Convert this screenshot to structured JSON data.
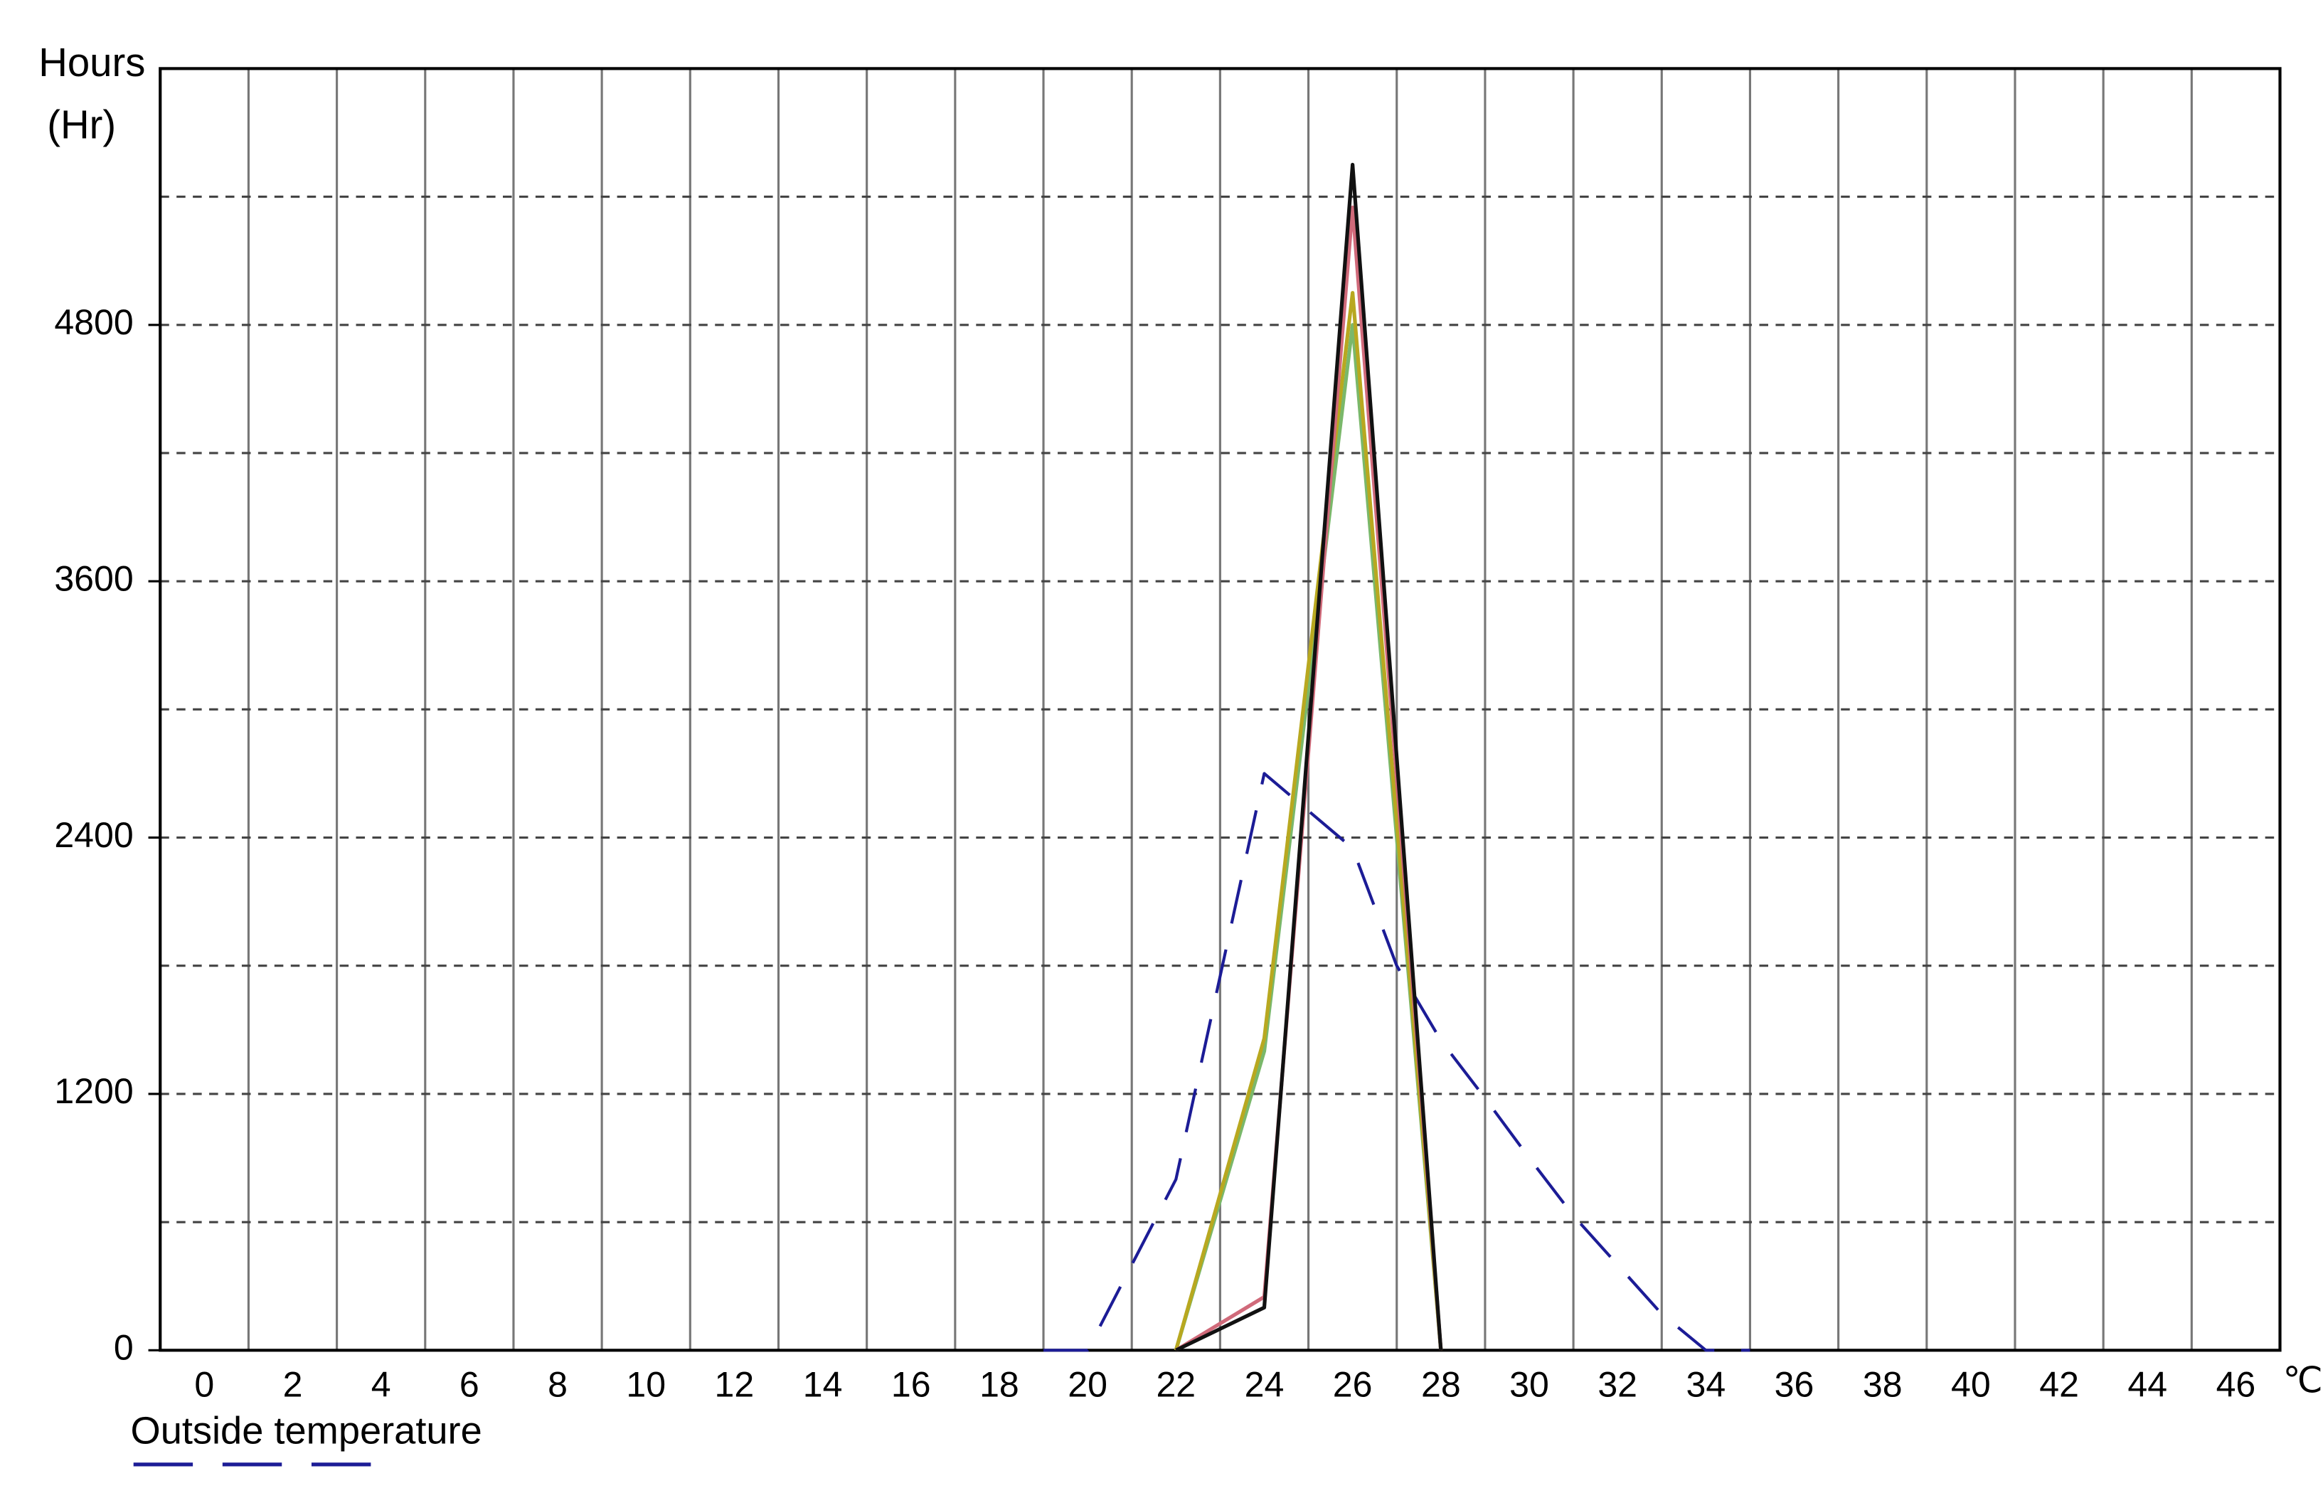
{
  "chart_data": {
    "type": "line",
    "ylabel": "Hours",
    "ylabel_unit": "(Hr)",
    "xlabel": "℃",
    "xlim": [
      -1,
      47
    ],
    "ylim": [
      0,
      6000
    ],
    "xticks": [
      0,
      2,
      4,
      6,
      8,
      10,
      12,
      14,
      16,
      18,
      20,
      22,
      24,
      26,
      28,
      30,
      32,
      34,
      36,
      38,
      40,
      42,
      44,
      46
    ],
    "xgrid": [
      1,
      3,
      5,
      7,
      9,
      11,
      13,
      15,
      17,
      19,
      21,
      23,
      25,
      27,
      29,
      31,
      33,
      35,
      37,
      39,
      41,
      43,
      45
    ],
    "yticks": [
      0,
      1200,
      2400,
      3600,
      4800
    ],
    "ygrid": [
      600,
      1200,
      1800,
      2400,
      3000,
      3600,
      4200,
      4800,
      5400
    ],
    "series": [
      {
        "name": "Outside temperature",
        "color": "#1c1c96",
        "dashed": true,
        "x": [
          19,
          20,
          22,
          24,
          26,
          27,
          28,
          29,
          30,
          31,
          32,
          33,
          34,
          35
        ],
        "values": [
          0,
          0,
          800,
          2700,
          2350,
          1800,
          1450,
          1180,
          900,
          630,
          400,
          170,
          0,
          0
        ]
      },
      {
        "color": "#7ab86a",
        "dashed": false,
        "x": [
          22,
          24,
          26,
          28
        ],
        "values": [
          0,
          1400,
          4800,
          0
        ]
      },
      {
        "color": "#b8a820",
        "dashed": false,
        "x": [
          22,
          24,
          26,
          28
        ],
        "values": [
          0,
          1460,
          4950,
          0
        ]
      },
      {
        "color": "#d06a7a",
        "dashed": false,
        "x": [
          22,
          24,
          26,
          28
        ],
        "values": [
          0,
          250,
          5350,
          0
        ]
      },
      {
        "color": "#111111",
        "dashed": false,
        "x": [
          22,
          24,
          26,
          28
        ],
        "values": [
          0,
          200,
          5550,
          0
        ]
      }
    ]
  }
}
